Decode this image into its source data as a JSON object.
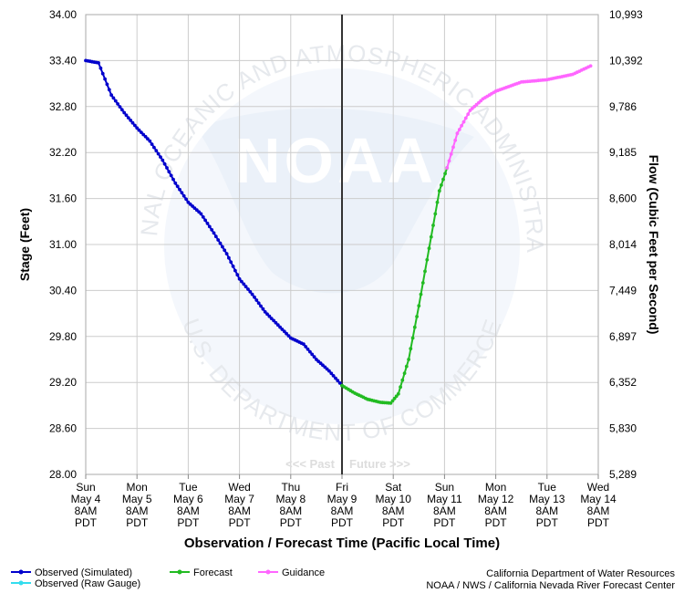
{
  "chart_data": {
    "type": "line",
    "title": "",
    "xlabel": "Observation / Forecast Time (Pacific Local Time)",
    "ylabel": "Stage (Feet)",
    "y2label": "Flow (Cubic Feet per Second)",
    "ylim": [
      28.0,
      34.0
    ],
    "yticks": [
      "34.00",
      "33.40",
      "32.80",
      "32.20",
      "31.60",
      "31.00",
      "30.40",
      "29.80",
      "29.20",
      "28.60",
      "28.00"
    ],
    "y2ticks": [
      "10,993",
      "10,392",
      "9,786",
      "9,185",
      "8,600",
      "8,014",
      "7,449",
      "6,897",
      "6,352",
      "5,830",
      "5,289"
    ],
    "x_unit": "days since Sun May 4 8AM PDT",
    "xlim": [
      0,
      10
    ],
    "xticks": [
      {
        "day": "Sun",
        "date": "May 4",
        "time": "8AM",
        "tz": "PDT"
      },
      {
        "day": "Mon",
        "date": "May 5",
        "time": "8AM",
        "tz": "PDT"
      },
      {
        "day": "Tue",
        "date": "May 6",
        "time": "8AM",
        "tz": "PDT"
      },
      {
        "day": "Wed",
        "date": "May 7",
        "time": "8AM",
        "tz": "PDT"
      },
      {
        "day": "Thu",
        "date": "May 8",
        "time": "8AM",
        "tz": "PDT"
      },
      {
        "day": "Fri",
        "date": "May 9",
        "time": "8AM",
        "tz": "PDT"
      },
      {
        "day": "Sat",
        "date": "May 10",
        "time": "8AM",
        "tz": "PDT"
      },
      {
        "day": "Sun",
        "date": "May 11",
        "time": "8AM",
        "tz": "PDT"
      },
      {
        "day": "Mon",
        "date": "May 12",
        "time": "8AM",
        "tz": "PDT"
      },
      {
        "day": "Tue",
        "date": "May 13",
        "time": "8AM",
        "tz": "PDT"
      },
      {
        "day": "Wed",
        "date": "May 14",
        "time": "8AM",
        "tz": "PDT"
      }
    ],
    "now_marker": {
      "x": 5.0,
      "past_label": "<<< Past",
      "future_label": "Future >>>"
    },
    "series": [
      {
        "name": "Observed (Simulated)",
        "color": "#0000cc",
        "points": [
          [
            0.0,
            33.4
          ],
          [
            0.25,
            33.37
          ],
          [
            0.5,
            32.95
          ],
          [
            0.75,
            32.72
          ],
          [
            1.0,
            32.52
          ],
          [
            1.25,
            32.35
          ],
          [
            1.5,
            32.1
          ],
          [
            1.75,
            31.8
          ],
          [
            2.0,
            31.55
          ],
          [
            2.25,
            31.4
          ],
          [
            2.5,
            31.15
          ],
          [
            2.75,
            30.88
          ],
          [
            3.0,
            30.55
          ],
          [
            3.25,
            30.35
          ],
          [
            3.5,
            30.12
          ],
          [
            3.75,
            29.95
          ],
          [
            4.0,
            29.78
          ],
          [
            4.25,
            29.7
          ],
          [
            4.5,
            29.5
          ],
          [
            4.75,
            29.35
          ],
          [
            5.0,
            29.16
          ]
        ]
      },
      {
        "name": "Observed (Raw Gauge)",
        "color": "#33ddee",
        "points": []
      },
      {
        "name": "Forecast",
        "color": "#22bb22",
        "points": [
          [
            5.0,
            29.16
          ],
          [
            5.25,
            29.06
          ],
          [
            5.5,
            28.98
          ],
          [
            5.75,
            28.94
          ],
          [
            5.95,
            28.93
          ],
          [
            6.1,
            29.05
          ],
          [
            6.3,
            29.5
          ],
          [
            6.5,
            30.2
          ],
          [
            6.7,
            30.95
          ],
          [
            6.9,
            31.7
          ],
          [
            7.05,
            32.0
          ]
        ]
      },
      {
        "name": "Guidance",
        "color": "#ff66ff",
        "points": [
          [
            7.05,
            32.0
          ],
          [
            7.25,
            32.45
          ],
          [
            7.5,
            32.75
          ],
          [
            7.75,
            32.9
          ],
          [
            8.0,
            33.0
          ],
          [
            8.5,
            33.12
          ],
          [
            9.0,
            33.15
          ],
          [
            9.5,
            33.22
          ],
          [
            9.85,
            33.33
          ]
        ]
      }
    ]
  },
  "watermark": {
    "brand": "NOAA",
    "ring_text": "NATIONAL OCEANIC AND ATMOSPHERIC ADMINISTRATION",
    "bottom_text": "U.S. DEPARTMENT OF COMMERCE"
  },
  "credits": {
    "line1": "California Department of Water Resources",
    "line2": "NOAA / NWS / California Nevada River Forecast Center"
  }
}
